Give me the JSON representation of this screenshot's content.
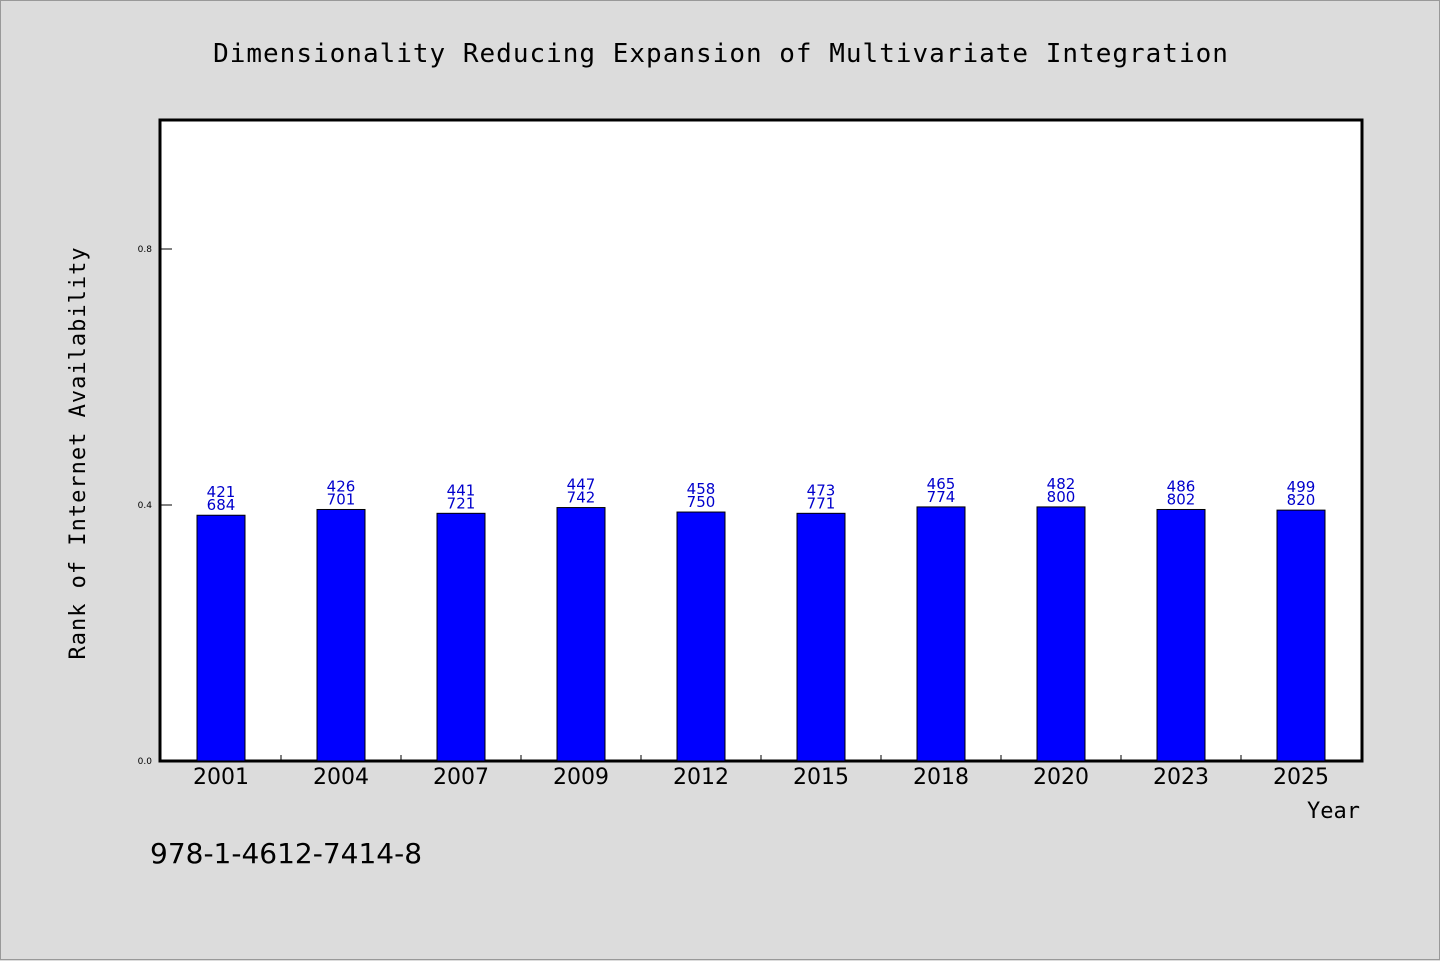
{
  "chart_data": {
    "type": "bar",
    "title": "Dimensionality Reducing Expansion of Multivariate Integration",
    "xlabel": "Year",
    "ylabel": "Rank of Internet Availability",
    "categories": [
      "2001",
      "2004",
      "2007",
      "2009",
      "2012",
      "2015",
      "2018",
      "2020",
      "2023",
      "2025"
    ],
    "values": [
      0.384,
      0.393,
      0.387,
      0.396,
      0.389,
      0.387,
      0.397,
      0.397,
      0.393,
      0.392
    ],
    "labels_top": [
      "421",
      "426",
      "441",
      "447",
      "458",
      "473",
      "465",
      "482",
      "486",
      "499"
    ],
    "labels_bottom": [
      "684",
      "701",
      "721",
      "742",
      "750",
      "771",
      "774",
      "800",
      "802",
      "820"
    ],
    "ylim": [
      0,
      1.0
    ],
    "yticks": [
      "0.0",
      "0.4",
      "0.8"
    ],
    "ytick_values": [
      0.0,
      0.4,
      0.8
    ],
    "bar_color": "#0000ff",
    "label_color": "#0000cc",
    "grid": false,
    "legend": "none"
  },
  "footer_text": "978-1-4612-7414-8"
}
